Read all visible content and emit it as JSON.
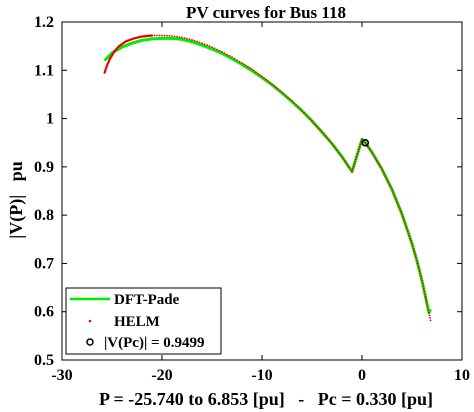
{
  "chart_data": {
    "type": "line",
    "title": "PV curves for Bus 118",
    "xlabel": "P = -25.740 to 6.853 [pu]   -   Pc = 0.330 [pu]",
    "ylabel": "|V(P)|   pu",
    "xlim": [
      -30,
      10
    ],
    "ylim": [
      0.5,
      1.2
    ],
    "xticks": [
      -30,
      -20,
      -10,
      0,
      10
    ],
    "yticks": [
      0.5,
      0.6,
      0.7,
      0.8,
      0.9,
      1.0,
      1.1,
      1.2
    ],
    "xtick_labels": [
      "-30",
      "-20",
      "-10",
      "0",
      "10"
    ],
    "ytick_labels": [
      "0.5",
      "0.6",
      "0.7",
      "0.8",
      "0.9",
      "1",
      "1.1",
      "1.2"
    ],
    "grid": false,
    "legend_position": "bottom-left",
    "series": [
      {
        "name": "DFT-Pade",
        "style": "solid-line",
        "color": "#00ee00",
        "x": [
          -25.74,
          -25.0,
          -24.0,
          -23.0,
          -22.0,
          -21.0,
          -20.0,
          -19.0,
          -18.0,
          -17.0,
          -16.0,
          -15.0,
          -14.0,
          -13.0,
          -12.0,
          -11.0,
          -10.0,
          -9.0,
          -8.0,
          -7.0,
          -6.0,
          -5.0,
          -4.0,
          -3.0,
          -2.0,
          -1.0,
          0.0,
          0.33,
          1.0,
          2.0,
          3.0,
          4.0,
          5.0,
          5.5,
          6.0,
          6.3,
          6.5,
          6.7,
          6.853
        ],
        "y": [
          1.12,
          1.136,
          1.148,
          1.156,
          1.162,
          1.165,
          1.166,
          1.166,
          1.164,
          1.159,
          1.152,
          1.144,
          1.135,
          1.124,
          1.112,
          1.099,
          1.085,
          1.07,
          1.053,
          1.035,
          1.016,
          0.995,
          0.972,
          0.948,
          0.921,
          0.89,
          0.957,
          0.95,
          0.93,
          0.895,
          0.853,
          0.802,
          0.741,
          0.705,
          0.664,
          0.636,
          0.616,
          0.598,
          0.605
        ]
      },
      {
        "name": "HELM",
        "style": "dots",
        "color": "#ee0000",
        "x": [
          -25.74,
          -25.5,
          -25.2,
          -24.8,
          -24.3,
          -23.6,
          -22.8,
          -22.0,
          -21.0,
          -20.0,
          -19.0,
          -18.0,
          -17.0,
          -16.0,
          -15.0,
          -14.0,
          -13.0,
          -12.0,
          -11.0,
          -10.0,
          -9.0,
          -8.0,
          -7.0,
          -6.0,
          -5.0,
          -4.0,
          -3.0,
          -2.0,
          -1.0,
          0.0,
          0.33,
          1.0,
          2.0,
          3.0,
          4.0,
          5.0,
          5.5,
          6.0,
          6.3,
          6.5,
          6.7,
          6.853
        ],
        "y": [
          1.095,
          1.11,
          1.124,
          1.138,
          1.15,
          1.16,
          1.166,
          1.17,
          1.172,
          1.172,
          1.171,
          1.168,
          1.163,
          1.156,
          1.148,
          1.138,
          1.127,
          1.115,
          1.102,
          1.087,
          1.071,
          1.054,
          1.036,
          1.016,
          0.995,
          0.972,
          0.948,
          0.921,
          0.89,
          0.957,
          0.95,
          0.93,
          0.895,
          0.853,
          0.802,
          0.741,
          0.705,
          0.664,
          0.636,
          0.616,
          0.598,
          0.582
        ]
      },
      {
        "name": "|V(Pc)| = 0.9499",
        "style": "circle-marker",
        "color": "#000000",
        "x": [
          0.33
        ],
        "y": [
          0.9499
        ]
      }
    ]
  }
}
